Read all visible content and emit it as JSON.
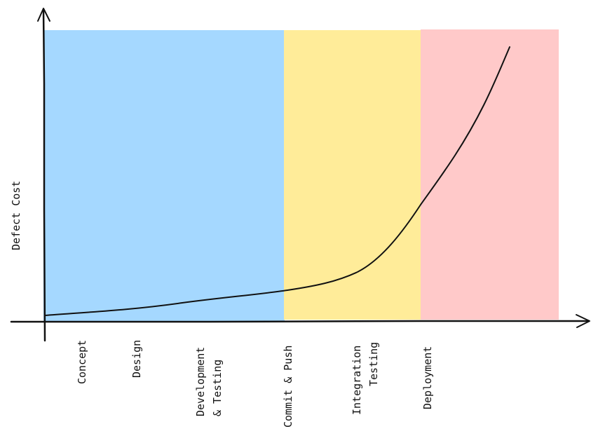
{
  "chart_data": {
    "type": "line",
    "title": "",
    "xlabel": "",
    "ylabel": "Defect Cost",
    "categories": [
      "Concept",
      "Design",
      "Development & Testing",
      "Commit & Push",
      "Integration Testing",
      "Deployment"
    ],
    "category_lines": [
      [
        "Concept"
      ],
      [
        "Design"
      ],
      [
        "Development",
        "& Testing"
      ],
      [
        "Commit & Push"
      ],
      [
        "Integration",
        "Testing"
      ],
      [
        "Deployment"
      ]
    ],
    "zones": [
      {
        "color": "#a5d8ff"
      },
      {
        "color": "#ffec99"
      },
      {
        "color": "#ffc9c9"
      }
    ],
    "grid": false,
    "legend": "none"
  }
}
